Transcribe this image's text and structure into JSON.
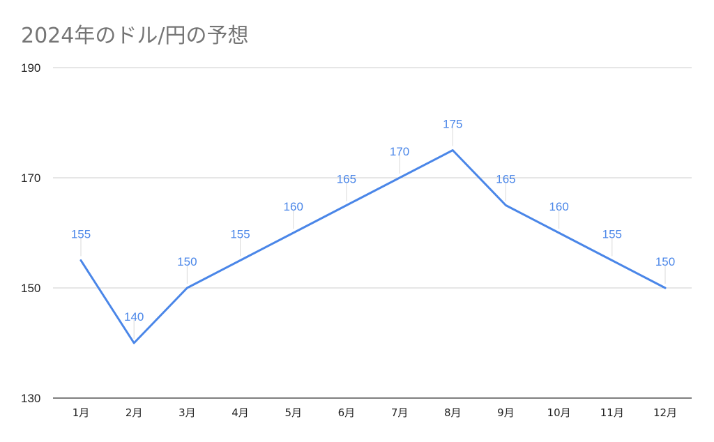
{
  "chart_data": {
    "type": "line",
    "title": "2024年のドル/円の予想",
    "xlabel": "",
    "ylabel": "",
    "categories": [
      "1月",
      "2月",
      "3月",
      "4月",
      "5月",
      "6月",
      "7月",
      "8月",
      "9月",
      "10月",
      "11月",
      "12月"
    ],
    "series": [
      {
        "values": [
          155,
          140,
          150,
          155,
          160,
          165,
          170,
          175,
          165,
          160,
          155,
          150
        ],
        "color": "#4a86e8"
      }
    ],
    "ylim": [
      130,
      190
    ],
    "yticks": [
      130,
      150,
      170,
      190
    ],
    "grid": true,
    "data_labels": true,
    "legend": "none"
  }
}
